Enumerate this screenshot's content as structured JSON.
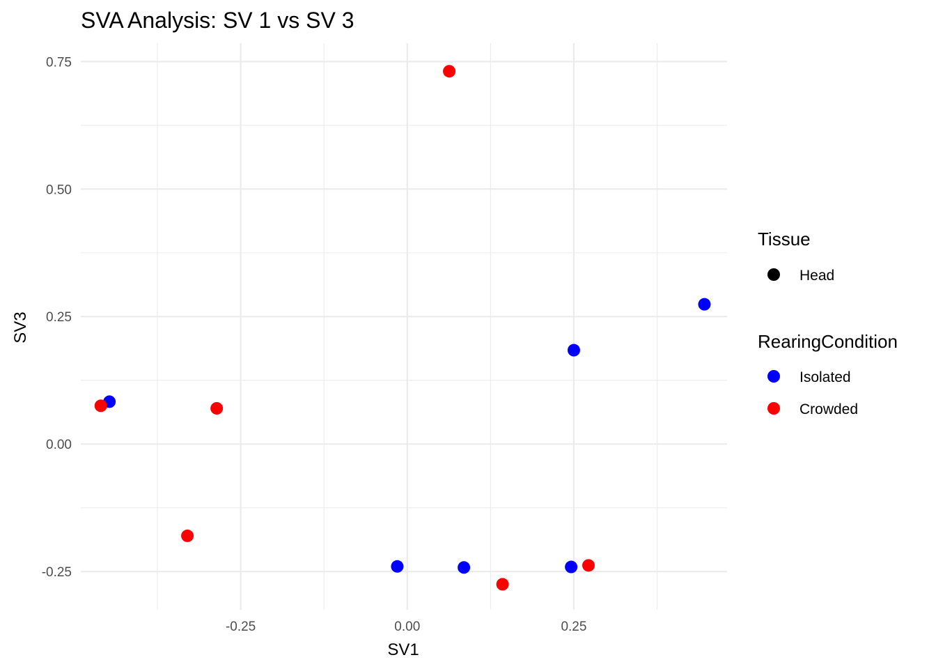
{
  "chart_data": {
    "type": "scatter",
    "title": "SVA Analysis: SV 1  vs SV 3",
    "xlabel": "SV1",
    "ylabel": "SV3",
    "xlim": [
      -0.49,
      0.48
    ],
    "ylim": [
      -0.325,
      0.786
    ],
    "x_ticks": [
      -0.25,
      0.0,
      0.25
    ],
    "x_tick_labels": [
      "-0.25",
      "0.00",
      "0.25"
    ],
    "x_minor_ticks": [
      -0.375,
      -0.125,
      0.125,
      0.375
    ],
    "y_ticks": [
      -0.25,
      0.0,
      0.25,
      0.5,
      0.75
    ],
    "y_tick_labels": [
      "-0.25",
      "0.00",
      "0.25",
      "0.50",
      "0.75"
    ],
    "y_minor_ticks": [
      -0.125,
      0.125,
      0.375,
      0.625
    ],
    "grid": true,
    "legend_position": "right",
    "legends": [
      {
        "title": "Tissue",
        "entries": [
          {
            "label": "Head",
            "color": "#000000"
          }
        ]
      },
      {
        "title": "RearingCondition",
        "entries": [
          {
            "label": "Isolated",
            "color": "#0000ff"
          },
          {
            "label": "Crowded",
            "color": "#ff0000"
          }
        ]
      }
    ],
    "series": [
      {
        "name": "Isolated",
        "color": "#0000ff",
        "points": [
          {
            "x": -0.447,
            "y": 0.083
          },
          {
            "x": -0.015,
            "y": -0.24
          },
          {
            "x": 0.085,
            "y": -0.242
          },
          {
            "x": 0.246,
            "y": -0.241
          },
          {
            "x": 0.25,
            "y": 0.184
          },
          {
            "x": 0.446,
            "y": 0.274
          }
        ]
      },
      {
        "name": "Crowded",
        "color": "#ff0000",
        "points": [
          {
            "x": -0.46,
            "y": 0.075
          },
          {
            "x": -0.286,
            "y": 0.07
          },
          {
            "x": -0.33,
            "y": -0.18
          },
          {
            "x": 0.063,
            "y": 0.731
          },
          {
            "x": 0.143,
            "y": -0.275
          },
          {
            "x": 0.272,
            "y": -0.238
          }
        ]
      }
    ]
  }
}
